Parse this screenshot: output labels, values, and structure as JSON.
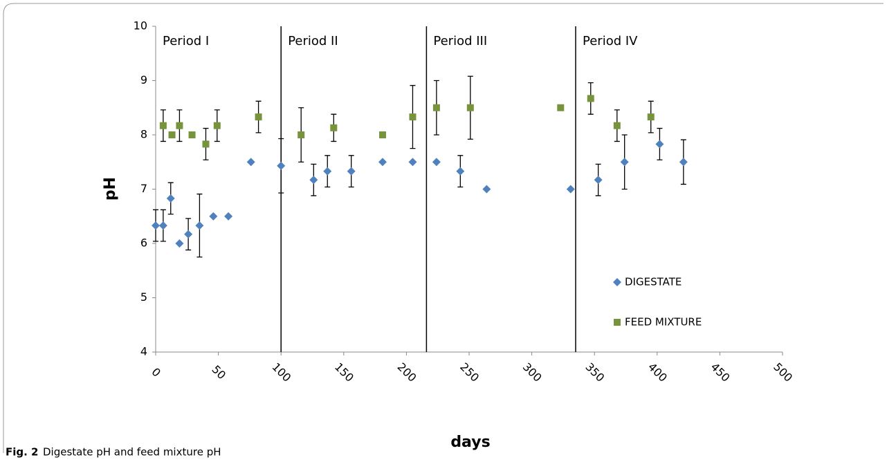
{
  "chart_data": {
    "type": "scatter",
    "xlabel": "days",
    "ylabel": "pH",
    "xlim": [
      0,
      500
    ],
    "xticks": [
      0,
      50,
      100,
      150,
      200,
      250,
      300,
      350,
      400,
      450,
      500
    ],
    "ylim": [
      4,
      10
    ],
    "yticks": [
      4,
      5,
      6,
      7,
      8,
      9,
      10
    ],
    "period_lines": [
      100,
      216,
      335
    ],
    "period_labels": [
      "Period I",
      "Period II",
      "Period III",
      "Period IV"
    ],
    "series": [
      {
        "name": "DIGESTATE",
        "color": "#4f81bd",
        "marker": "diamond",
        "x": [
          0,
          6,
          12,
          19,
          26,
          35,
          46,
          58,
          76,
          100,
          126,
          137,
          156,
          181,
          205,
          224,
          243,
          264,
          331,
          353,
          374,
          402,
          421
        ],
        "values": [
          6.33,
          6.33,
          6.83,
          6.0,
          6.17,
          6.33,
          6.5,
          6.5,
          7.5,
          7.43,
          7.17,
          7.33,
          7.33,
          7.5,
          7.5,
          7.5,
          7.33,
          7.0,
          7.0,
          7.17,
          7.5,
          7.83,
          7.5
        ],
        "errors": [
          0.29,
          0.29,
          0.29,
          null,
          0.29,
          0.58,
          null,
          null,
          null,
          0.5,
          0.29,
          0.29,
          0.29,
          null,
          null,
          null,
          0.29,
          null,
          null,
          0.29,
          0.5,
          0.29,
          0.41
        ]
      },
      {
        "name": "FEED MIXTURE",
        "color": "#77933c",
        "marker": "square",
        "x": [
          6,
          13,
          19,
          29,
          40,
          49,
          82,
          116,
          142,
          181,
          205,
          224,
          251,
          323,
          347,
          368,
          395
        ],
        "values": [
          8.17,
          8.0,
          8.17,
          8.0,
          7.83,
          8.17,
          8.33,
          8.0,
          8.13,
          8.0,
          8.33,
          8.5,
          8.5,
          8.5,
          8.67,
          8.17,
          8.33
        ],
        "errors": [
          0.29,
          null,
          0.29,
          null,
          0.29,
          0.29,
          0.29,
          0.5,
          0.25,
          null,
          0.58,
          0.5,
          0.58,
          null,
          0.29,
          0.29,
          0.29
        ]
      }
    ]
  },
  "caption": {
    "label": "Fig. 2",
    "text": "Digestate pH and feed mixture pH"
  }
}
